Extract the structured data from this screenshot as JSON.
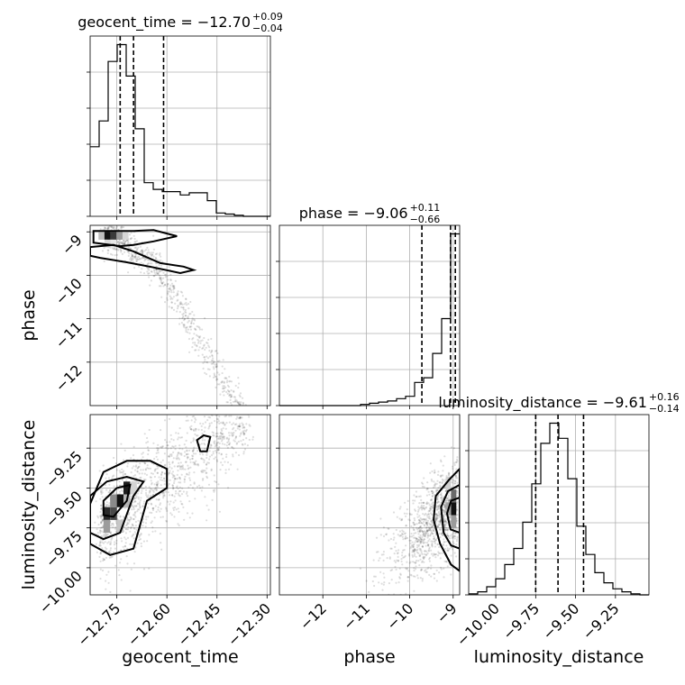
{
  "chart_data": {
    "type": "corner",
    "parameters": [
      "geocent_time",
      "phase",
      "luminosity_distance"
    ],
    "axis_labels": {
      "geocent_time": "geocent_time",
      "phase": "phase",
      "luminosity_distance": "luminosity_distance"
    },
    "ranges": {
      "geocent_time": [
        -12.83,
        -12.29
      ],
      "phase": [
        -13.0,
        -8.85
      ],
      "luminosity_distance": [
        -10.17,
        -9.04
      ]
    },
    "ticks": {
      "geocent_time": {
        "values": [
          -12.75,
          -12.6,
          -12.45,
          -12.3
        ],
        "labels": [
          "−12.75",
          "−12.60",
          "−12.45",
          "−12.30"
        ]
      },
      "phase": {
        "values": [
          -12,
          -11,
          -10,
          -9
        ],
        "labels": [
          "−12",
          "−11",
          "−10",
          "−9"
        ]
      },
      "luminosity_distance": {
        "values": [
          -10.0,
          -9.75,
          -9.5,
          -9.25
        ],
        "labels": [
          "−10.00",
          "−9.75",
          "−9.50",
          "−9.25"
        ]
      }
    },
    "titles": {
      "geocent_time": {
        "text": "geocent_time = −12.70",
        "plus": "+0.09",
        "minus": "−0.04"
      },
      "phase": {
        "text": "phase = −9.06",
        "plus": "+0.11",
        "minus": "−0.66"
      },
      "luminosity_distance": {
        "text": "luminosity_distance = −9.61",
        "plus": "+0.16",
        "minus": "−0.14"
      }
    },
    "quantiles": {
      "geocent_time": [
        -12.74,
        -12.7,
        -12.61
      ],
      "phase": [
        -9.72,
        -9.06,
        -8.95
      ],
      "luminosity_distance": [
        -9.75,
        -9.61,
        -9.45
      ]
    },
    "histograms": {
      "geocent_time": {
        "edges": [
          -12.83,
          -12.803,
          -12.776,
          -12.749,
          -12.722,
          -12.695,
          -12.668,
          -12.641,
          -12.614,
          -12.587,
          -12.56,
          -12.533,
          -12.506,
          -12.479,
          -12.452,
          -12.425,
          -12.398,
          -12.371,
          -12.344,
          -12.317,
          -12.29
        ],
        "counts": [
          62,
          85,
          138,
          153,
          125,
          78,
          30,
          24,
          22,
          22,
          19,
          21,
          21,
          14,
          3,
          2,
          1,
          0,
          0,
          0
        ]
      },
      "phase": {
        "edges": [
          -13.0,
          -12.7925,
          -12.585,
          -12.3775,
          -12.17,
          -11.9625,
          -11.755,
          -11.5475,
          -11.34,
          -11.1325,
          -10.925,
          -10.7175,
          -10.51,
          -10.3025,
          -10.095,
          -9.8875,
          -9.68,
          -9.4725,
          -9.265,
          -9.0575,
          -8.85
        ],
        "counts": [
          0,
          0,
          0,
          0,
          0,
          0,
          0,
          0,
          0,
          1,
          2,
          3,
          4,
          6,
          8,
          20,
          24,
          45,
          75,
          148
        ]
      },
      "luminosity_distance": {
        "edges": [
          -10.17,
          -10.1135,
          -10.057,
          -10.0005,
          -9.944,
          -9.8875,
          -9.831,
          -9.7745,
          -9.718,
          -9.6615,
          -9.605,
          -9.5485,
          -9.492,
          -9.4355,
          -9.379,
          -9.3225,
          -9.266,
          -9.2095,
          -9.153,
          -9.0965,
          -9.04
        ],
        "counts": [
          1,
          3,
          8,
          16,
          30,
          46,
          72,
          110,
          150,
          170,
          155,
          115,
          68,
          40,
          22,
          12,
          6,
          3,
          1,
          0
        ]
      }
    }
  }
}
